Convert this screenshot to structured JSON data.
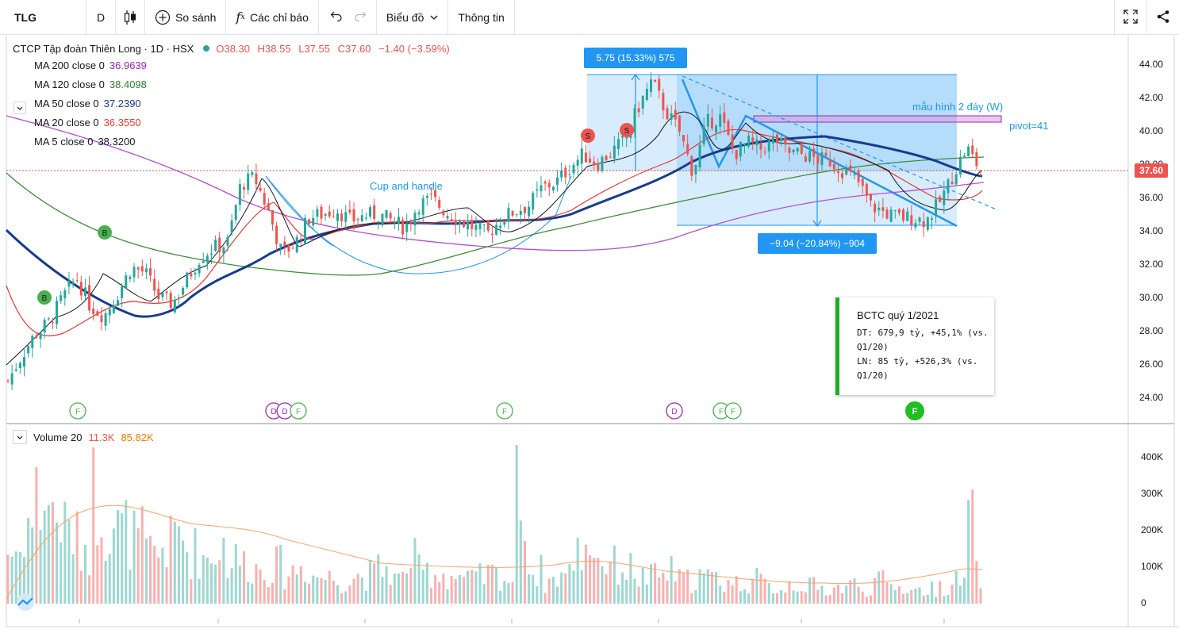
{
  "toolbar": {
    "symbol": "TLG",
    "timeframe": "D",
    "compare_label": "So sánh",
    "indicators_label": "Các chỉ báo",
    "chart_menu_label": "Biểu đồ",
    "info_label": "Thông tin"
  },
  "legend": {
    "title": "CTCP Tập đoàn Thiên Long · 1D · HSX",
    "open": "O38.30",
    "high": "H38.55",
    "low": "L37.55",
    "close": "C37.60",
    "change": "−1.40 (−3.59%)",
    "mas": [
      {
        "label": "MA 200 close 0",
        "value": "36.9639",
        "color": "#9c27b0"
      },
      {
        "label": "MA 120 close 0",
        "value": "38.4098",
        "color": "#2e7d32"
      },
      {
        "label": "MA 50 close 0",
        "value": "37.2390",
        "color": "#1a3a8a"
      },
      {
        "label": "MA 20 close 0",
        "value": "36.3550",
        "color": "#e53935"
      },
      {
        "label": "MA 5 close 0",
        "value": "38.3200",
        "color": "#131722"
      }
    ]
  },
  "volume_legend": {
    "label": "Volume 20",
    "value1": "11.3K",
    "value2": "85.82K"
  },
  "price_axis": [
    "44.00",
    "42.00",
    "40.00",
    "38.00",
    "36.00",
    "34.00",
    "32.00",
    "30.00",
    "28.00",
    "26.00",
    "24.00"
  ],
  "volume_axis": [
    "400K",
    "300K",
    "200K",
    "100K",
    "0"
  ],
  "last_price": "37.60",
  "annotations": {
    "measure_up": "5.75 (15.33%) 575",
    "measure_down": "−9.04 (−20.84%) −904",
    "pattern_label": "mẫu hình 2 đáy (W)",
    "pivot_label": "pivot=41",
    "cup_label": "Cup and handle"
  },
  "signals": {
    "buy": "B",
    "sell": "S",
    "event_f": "F",
    "event_d": "D"
  },
  "bctc": {
    "title": "BCTC quý 1/2021",
    "dt": "DT: 679,9 tỷ, +45,1% (vs. Q1/20)",
    "ln": "LN: 85 tỷ, +526,3% (vs. Q1/20)"
  },
  "chart_data": {
    "type": "candlestick",
    "ylim": [
      23.5,
      45
    ],
    "volume_ylim": [
      0,
      470000
    ],
    "ma_lines": [
      "MA 200",
      "MA 120",
      "MA 50",
      "MA 20",
      "MA 5"
    ],
    "close_path": [
      25.0,
      26.5,
      27.8,
      28.5,
      30.0,
      31.2,
      29.5,
      28.9,
      30.2,
      31.8,
      31.5,
      30.0,
      29.6,
      31.0,
      32.4,
      33.0,
      33.2,
      36.8,
      37.2,
      35.2,
      32.6,
      33.3,
      34.8,
      35.0,
      35.3,
      34.6,
      34.9,
      35.0,
      34.6,
      34.2,
      35.6,
      35.9,
      35.1,
      34.6,
      34.2,
      33.8,
      34.7,
      35.2,
      35.5,
      36.6,
      36.9,
      37.8,
      38.6,
      38.0,
      38.7,
      39.4,
      41.4,
      43.0,
      41.2,
      40.0,
      37.5,
      40.5,
      40.8,
      38.6,
      39.3,
      38.9,
      39.5,
      38.7,
      38.6,
      38.3,
      38.2,
      37.6,
      37.0,
      35.5,
      35.1,
      34.8,
      34.8,
      34.6,
      35.7,
      37.4,
      39.0,
      37.6
    ],
    "volume_path": [
      180,
      280,
      360,
      300,
      250,
      210,
      380,
      290,
      250,
      220,
      170,
      200,
      240,
      180,
      160,
      200,
      150,
      140,
      120,
      130,
      110,
      125,
      95,
      90,
      80,
      95,
      100,
      120,
      85,
      150,
      110,
      105,
      95,
      80,
      90,
      100,
      85,
      420,
      110,
      80,
      100,
      180,
      210,
      150,
      130,
      120,
      90,
      95,
      110,
      80,
      95,
      85,
      75,
      70,
      80,
      60,
      55,
      70,
      60,
      50,
      55,
      65,
      50,
      75,
      60,
      55,
      45,
      50,
      60,
      75,
      260,
      40
    ]
  }
}
